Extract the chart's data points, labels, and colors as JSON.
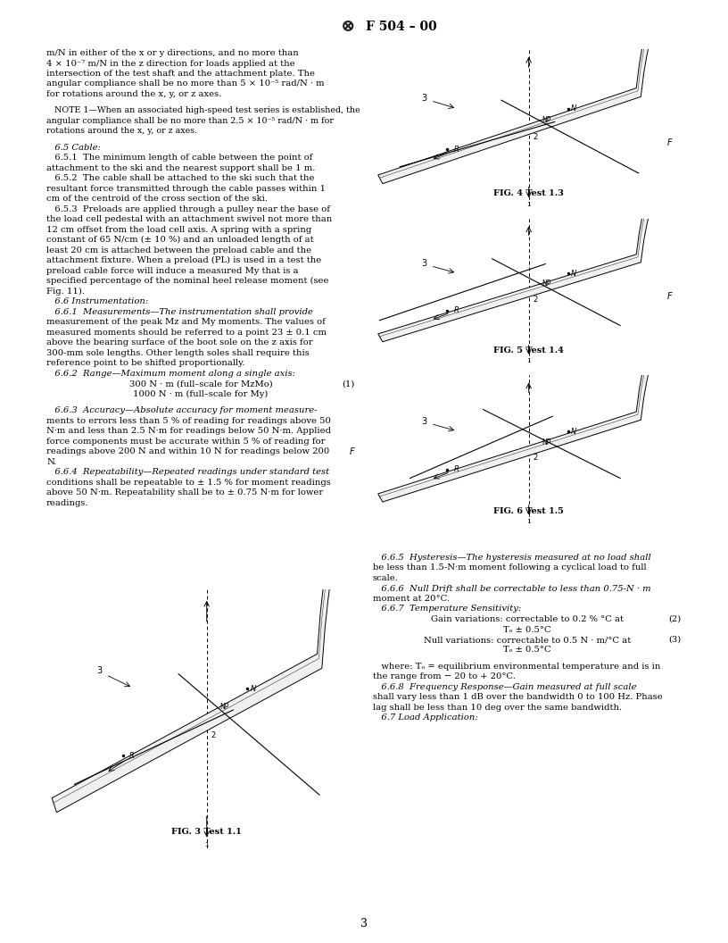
{
  "page_number": "3",
  "background_color": "#ffffff",
  "page_width": 8.16,
  "page_height": 10.56,
  "dpi": 100,
  "left_col_lines": [
    {
      "text": "m/N in either of the x or y directions, and no more than",
      "indent": 0,
      "style": "normal"
    },
    {
      "text": "4 × 10⁻⁷ m/N in the z direction for loads applied at the",
      "indent": 0,
      "style": "normal"
    },
    {
      "text": "intersection of the test shaft and the attachment plate. The",
      "indent": 0,
      "style": "normal"
    },
    {
      "text": "angular compliance shall be no more than 5 × 10⁻⁵ rad/N · m",
      "indent": 0,
      "style": "normal"
    },
    {
      "text": "for rotations around the x, y, or z axes.",
      "indent": 0,
      "style": "normal"
    },
    {
      "text": "",
      "indent": 0,
      "style": "skip_half"
    },
    {
      "text": "   NOTE 1—When an associated high-speed test series is established, the",
      "indent": 1,
      "style": "note"
    },
    {
      "text": "angular compliance shall be no more than 2.5 × 10⁻⁵ rad/N · m for",
      "indent": 1,
      "style": "note"
    },
    {
      "text": "rotations around the x, y, or z axes.",
      "indent": 1,
      "style": "note"
    },
    {
      "text": "",
      "indent": 0,
      "style": "skip_half"
    },
    {
      "text": "   6.5 Cable:",
      "indent": 0,
      "style": "italic"
    },
    {
      "text": "   6.5.1  The minimum length of cable between the point of",
      "indent": 0,
      "style": "normal"
    },
    {
      "text": "attachment to the ski and the nearest support shall be 1 m.",
      "indent": 0,
      "style": "normal"
    },
    {
      "text": "   6.5.2  The cable shall be attached to the ski such that the",
      "indent": 0,
      "style": "normal"
    },
    {
      "text": "resultant force transmitted through the cable passes within 1",
      "indent": 0,
      "style": "normal"
    },
    {
      "text": "cm of the centroid of the cross section of the ski.",
      "indent": 0,
      "style": "normal"
    },
    {
      "text": "   6.5.3  Preloads are applied through a pulley near the base of",
      "indent": 0,
      "style": "normal"
    },
    {
      "text": "the load cell pedestal with an attachment swivel not more than",
      "indent": 0,
      "style": "normal"
    },
    {
      "text": "12 cm offset from the load cell axis. A spring with a spring",
      "indent": 0,
      "style": "normal"
    },
    {
      "text": "constant of 65 N/cm (± 10 %) and an unloaded length of at",
      "indent": 0,
      "style": "normal"
    },
    {
      "text": "least 20 cm is attached between the preload cable and the",
      "indent": 0,
      "style": "normal"
    },
    {
      "text": "attachment fixture. When a preload (PL) is used in a test the",
      "indent": 0,
      "style": "normal"
    },
    {
      "text": "preload cable force will induce a measured My that is a",
      "indent": 0,
      "style": "normal"
    },
    {
      "text": "specified percentage of the nominal heel release moment (see",
      "indent": 0,
      "style": "normal"
    },
    {
      "text": "Fig. 11).",
      "indent": 0,
      "style": "normal"
    },
    {
      "text": "   6.6 Instrumentation:",
      "indent": 0,
      "style": "italic"
    },
    {
      "text": "   6.6.1  Measurements—The instrumentation shall provide",
      "indent": 0,
      "style": "italic_lead"
    },
    {
      "text": "measurement of the peak Mz and My moments. The values of",
      "indent": 0,
      "style": "normal"
    },
    {
      "text": "measured moments should be referred to a point 23 ± 0.1 cm",
      "indent": 0,
      "style": "normal"
    },
    {
      "text": "above the bearing surface of the boot sole on the z axis for",
      "indent": 0,
      "style": "normal"
    },
    {
      "text": "300-mm sole lengths. Other length soles shall require this",
      "indent": 0,
      "style": "normal"
    },
    {
      "text": "reference point to be shifted proportionally.",
      "indent": 0,
      "style": "normal"
    },
    {
      "text": "   6.6.2  Range—Maximum moment along a single axis:",
      "indent": 0,
      "style": "italic_lead"
    },
    {
      "text": "300 N · m (full–scale for MzMo)",
      "indent": 2,
      "style": "center_eq",
      "eq_num": "(1)"
    },
    {
      "text": "1000 N · m (full–scale for My)",
      "indent": 2,
      "style": "center_eq_no_num"
    },
    {
      "text": "",
      "indent": 0,
      "style": "skip_half"
    },
    {
      "text": "   6.6.3  Accuracy—Absolute accuracy for moment measure-",
      "indent": 0,
      "style": "italic_lead"
    },
    {
      "text": "ments to errors less than 5 % of reading for readings above 50",
      "indent": 0,
      "style": "normal"
    },
    {
      "text": "N·m and less than 2.5 N·m for readings below 50 N·m. Applied",
      "indent": 0,
      "style": "normal"
    },
    {
      "text": "force components must be accurate within 5 % of reading for",
      "indent": 0,
      "style": "normal"
    },
    {
      "text": "readings above 200 N and within 10 N for readings below 200",
      "indent": 0,
      "style": "normal"
    },
    {
      "text": "N.",
      "indent": 0,
      "style": "normal"
    },
    {
      "text": "   6.6.4  Repeatability—Repeated readings under standard test",
      "indent": 0,
      "style": "italic_lead"
    },
    {
      "text": "conditions shall be repeatable to ± 1.5 % for moment readings",
      "indent": 0,
      "style": "normal"
    },
    {
      "text": "above 50 N·m. Repeatability shall be to ± 0.75 N·m for lower",
      "indent": 0,
      "style": "normal"
    },
    {
      "text": "readings.",
      "indent": 0,
      "style": "normal"
    }
  ],
  "right_col_lines": [
    {
      "text": "   6.6.5  Hysteresis—The hysteresis measured at no load shall",
      "style": "italic_lead"
    },
    {
      "text": "be less than 1.5-N·m moment following a cyclical load to full",
      "style": "normal"
    },
    {
      "text": "scale.",
      "style": "normal"
    },
    {
      "text": "   6.6.6  Null Drift shall be correctable to less than 0.75-N · m",
      "style": "italic_lead"
    },
    {
      "text": "moment at 20°C.",
      "style": "normal"
    },
    {
      "text": "   6.6.7  Temperature Sensitivity:",
      "style": "italic"
    },
    {
      "text": "Gain variations: correctable to 0.2 % °C at",
      "style": "center_eq",
      "eq_num": "(2)"
    },
    {
      "text": "Tₒ ± 0.5°C",
      "style": "center_eq_no_num"
    },
    {
      "text": "Null variations: correctable to 0.5 N · m/°C at",
      "style": "center_eq",
      "eq_num": "(3)"
    },
    {
      "text": "Tₒ ± 0.5°C",
      "style": "center_eq_no_num"
    },
    {
      "text": "",
      "style": "skip_half"
    },
    {
      "text": "   where: Tₒ = equilibrium environmental temperature and is in",
      "style": "normal"
    },
    {
      "text": "the range from − 20 to + 20°C.",
      "style": "normal"
    },
    {
      "text": "   6.6.8  Frequency Response—Gain measured at full scale",
      "style": "italic_lead"
    },
    {
      "text": "shall vary less than 1 dB over the bandwidth 0 to 100 Hz. Phase",
      "style": "normal"
    },
    {
      "text": "lag shall be less than 10 deg over the same bandwidth.",
      "style": "normal"
    },
    {
      "text": "   6.7 Load Application:",
      "style": "italic"
    }
  ]
}
